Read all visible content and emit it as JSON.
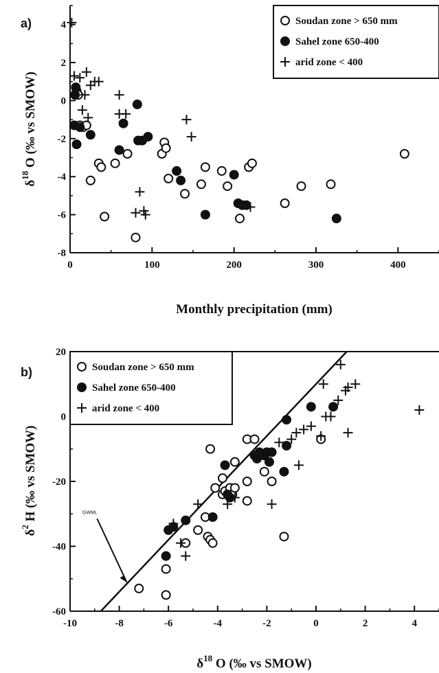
{
  "chart_data": [
    {
      "panel_label": "a)",
      "type": "scatter",
      "xlabel": "Monthly precipitation (mm)",
      "ylabel": {
        "prefix": "δ",
        "sup": "18",
        "main": "O (‰ vs SMOW)"
      },
      "xlim": [
        0,
        450
      ],
      "ylim": [
        -8,
        5
      ],
      "xticks": [
        0,
        100,
        200,
        300,
        400
      ],
      "yticks": [
        -8,
        -6,
        -4,
        -2,
        0,
        2,
        4
      ],
      "legend_position": "top-right",
      "series": [
        {
          "name": "Soudan zone > 650 mm",
          "marker": "open-circle",
          "points": [
            [
              8,
              0.5
            ],
            [
              10,
              0.3
            ],
            [
              12,
              -1.3
            ],
            [
              16,
              -1.4
            ],
            [
              20,
              -1.3
            ],
            [
              25,
              -4.2
            ],
            [
              35,
              -3.3
            ],
            [
              38,
              -3.5
            ],
            [
              42,
              -6.1
            ],
            [
              55,
              -3.3
            ],
            [
              70,
              -2.8
            ],
            [
              80,
              -7.2
            ],
            [
              112,
              -2.8
            ],
            [
              115,
              -2.2
            ],
            [
              117,
              -2.5
            ],
            [
              120,
              -4.1
            ],
            [
              140,
              -4.9
            ],
            [
              160,
              -4.4
            ],
            [
              165,
              -3.5
            ],
            [
              185,
              -3.7
            ],
            [
              192,
              -4.5
            ],
            [
              207,
              -6.2
            ],
            [
              218,
              -3.5
            ],
            [
              222,
              -3.3
            ],
            [
              262,
              -5.4
            ],
            [
              282,
              -4.5
            ],
            [
              318,
              -4.4
            ],
            [
              408,
              -2.8
            ]
          ]
        },
        {
          "name": "Sahel zone  650-400",
          "marker": "filled-circle",
          "points": [
            [
              5,
              -1.3
            ],
            [
              6,
              0.3
            ],
            [
              7,
              0.7
            ],
            [
              8,
              -2.3
            ],
            [
              12,
              -1.4
            ],
            [
              25,
              -1.8
            ],
            [
              60,
              -2.6
            ],
            [
              65,
              -1.2
            ],
            [
              82,
              -0.2
            ],
            [
              83,
              -2.1
            ],
            [
              88,
              -2.1
            ],
            [
              95,
              -1.9
            ],
            [
              130,
              -3.7
            ],
            [
              135,
              -4.2
            ],
            [
              165,
              -6.0
            ],
            [
              200,
              -3.9
            ],
            [
              205,
              -5.4
            ],
            [
              210,
              -5.5
            ],
            [
              215,
              -5.5
            ],
            [
              325,
              -6.2
            ]
          ]
        },
        {
          "name": "arid zone < 400",
          "marker": "plus",
          "points": [
            [
              2,
              4.1
            ],
            [
              5,
              1.3
            ],
            [
              12,
              1.2
            ],
            [
              20,
              1.5
            ],
            [
              25,
              0.8
            ],
            [
              30,
              1.0
            ],
            [
              35,
              1.0
            ],
            [
              15,
              -0.5
            ],
            [
              18,
              0.3
            ],
            [
              22,
              -0.9
            ],
            [
              60,
              0.3
            ],
            [
              60,
              -0.7
            ],
            [
              68,
              -0.7
            ],
            [
              142,
              -1.0
            ],
            [
              148,
              -1.9
            ],
            [
              80,
              -5.9
            ],
            [
              85,
              -4.8
            ],
            [
              90,
              -5.8
            ],
            [
              92,
              -6.0
            ],
            [
              220,
              -5.6
            ]
          ]
        }
      ]
    },
    {
      "panel_label": "b)",
      "type": "scatter",
      "xlabel": {
        "prefix": "δ",
        "sup": "18",
        "main": "O (‰ vs SMOW)"
      },
      "ylabel": {
        "prefix": "δ",
        "sup": "2",
        "main": "H (‰ vs SMOW)"
      },
      "xlim": [
        -10,
        5
      ],
      "ylim": [
        -60,
        20
      ],
      "xticks": [
        -10,
        -8,
        -6,
        -4,
        -2,
        0,
        2,
        4
      ],
      "yticks": [
        -60,
        -40,
        -20,
        0,
        20
      ],
      "legend_position": "top-left",
      "gwml_label": "GWML",
      "gwml_line": {
        "slope": 8,
        "intercept": 10
      },
      "series": [
        {
          "name": "Soudan zone > 650 mm",
          "marker": "open-circle",
          "points": [
            [
              -7.2,
              -53
            ],
            [
              -6.1,
              -55
            ],
            [
              -6.1,
              -47
            ],
            [
              -5.3,
              -39
            ],
            [
              -4.8,
              -35
            ],
            [
              -4.5,
              -31
            ],
            [
              -4.4,
              -37
            ],
            [
              -4.3,
              -38
            ],
            [
              -4.2,
              -39
            ],
            [
              -4.3,
              -10
            ],
            [
              -4.1,
              -22
            ],
            [
              -3.8,
              -19
            ],
            [
              -3.8,
              -24
            ],
            [
              -3.7,
              -23
            ],
            [
              -3.5,
              -22
            ],
            [
              -3.4,
              -24
            ],
            [
              -3.3,
              -22
            ],
            [
              -3.3,
              -14
            ],
            [
              -2.8,
              -7
            ],
            [
              -2.8,
              -20
            ],
            [
              -2.8,
              -26
            ],
            [
              -2.5,
              -7
            ],
            [
              -2.1,
              -17
            ],
            [
              -1.8,
              -20
            ],
            [
              -1.3,
              -37
            ],
            [
              0.2,
              -7
            ]
          ]
        },
        {
          "name": "Sahel zone  650-400",
          "marker": "filled-circle",
          "points": [
            [
              -6.1,
              -43
            ],
            [
              -6.0,
              -35
            ],
            [
              -5.8,
              -34
            ],
            [
              -5.3,
              -32
            ],
            [
              -4.2,
              -31
            ],
            [
              -3.7,
              -15
            ],
            [
              -3.6,
              -24
            ],
            [
              -3.5,
              -25
            ],
            [
              -2.5,
              -12
            ],
            [
              -2.4,
              -13
            ],
            [
              -2.3,
              -11
            ],
            [
              -2.1,
              -12
            ],
            [
              -2.0,
              -11
            ],
            [
              -1.9,
              -14
            ],
            [
              -1.8,
              -11
            ],
            [
              -1.3,
              -17
            ],
            [
              -1.2,
              -9
            ],
            [
              -1.2,
              -1
            ],
            [
              -0.2,
              3
            ],
            [
              0.7,
              3
            ]
          ]
        },
        {
          "name": "arid zone < 400",
          "marker": "plus",
          "points": [
            [
              -5.8,
              -33
            ],
            [
              -5.5,
              -39
            ],
            [
              -5.3,
              -43
            ],
            [
              -4.8,
              -27
            ],
            [
              -3.6,
              -27
            ],
            [
              -3.3,
              -25
            ],
            [
              -1.8,
              -27
            ],
            [
              -1.5,
              -8
            ],
            [
              -1.0,
              -7
            ],
            [
              -0.8,
              -5
            ],
            [
              -0.7,
              -15
            ],
            [
              -0.5,
              -4
            ],
            [
              -0.2,
              -3
            ],
            [
              0.2,
              -6
            ],
            [
              0.3,
              10
            ],
            [
              0.4,
              0
            ],
            [
              0.6,
              0
            ],
            [
              0.9,
              5
            ],
            [
              1.0,
              16
            ],
            [
              1.2,
              8
            ],
            [
              1.3,
              9
            ],
            [
              1.3,
              -5
            ],
            [
              1.6,
              10
            ],
            [
              4.2,
              2
            ]
          ]
        }
      ]
    }
  ]
}
